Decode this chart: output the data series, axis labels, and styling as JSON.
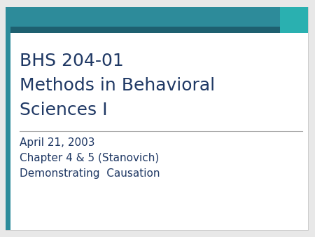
{
  "title_line1": "BHS 204-01",
  "title_line2": "Methods in Behavioral",
  "title_line3": "Sciences I",
  "body_line1": "April 21, 2003",
  "body_line2": "Chapter 4 & 5 (Stanovich)",
  "body_line3": "Demonstrating  Causation",
  "bg_color": "#ffffff",
  "outer_bg": "#e8e8e8",
  "header_teal": "#2d8b9a",
  "header_dark": "#1e6070",
  "accent_right": "#2ab0b0",
  "title_color": "#1f3864",
  "body_color": "#1f3864",
  "divider_color": "#aaaaaa",
  "title_fontsize": 18,
  "body_fontsize": 11
}
